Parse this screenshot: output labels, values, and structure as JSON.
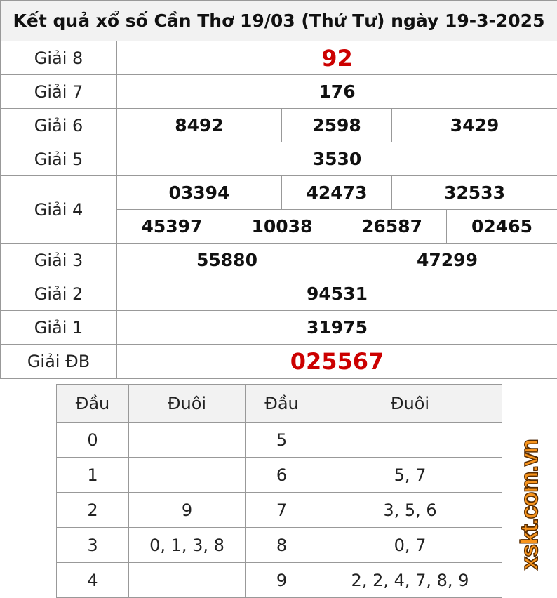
{
  "title": "Kết quả xổ số Cần Thơ 19/03 (Thứ Tư) ngày 19-3-2025",
  "prizes": {
    "g8": {
      "label": "Giải 8",
      "values": [
        "92"
      ]
    },
    "g7": {
      "label": "Giải 7",
      "values": [
        "176"
      ]
    },
    "g6": {
      "label": "Giải 6",
      "values": [
        "8492",
        "2598",
        "3429"
      ]
    },
    "g5": {
      "label": "Giải 5",
      "values": [
        "3530"
      ]
    },
    "g4": {
      "label": "Giải 4",
      "values": [
        "03394",
        "42473",
        "32533",
        "45397",
        "10038",
        "26587",
        "02465"
      ]
    },
    "g3": {
      "label": "Giải 3",
      "values": [
        "55880",
        "47299"
      ]
    },
    "g2": {
      "label": "Giải 2",
      "values": [
        "94531"
      ]
    },
    "g1": {
      "label": "Giải 1",
      "values": [
        "31975"
      ]
    },
    "db": {
      "label": "Giải ĐB",
      "values": [
        "025567"
      ]
    }
  },
  "loto": {
    "headers": [
      "Đầu",
      "Đuôi",
      "Đầu",
      "Đuôi"
    ],
    "rows": [
      {
        "d1": "0",
        "t1": "",
        "d2": "5",
        "t2": ""
      },
      {
        "d1": "1",
        "t1": "",
        "d2": "6",
        "t2": "5, 7"
      },
      {
        "d1": "2",
        "t1": "9",
        "d2": "7",
        "t2": "3, 5, 6"
      },
      {
        "d1": "3",
        "t1": "0, 1, 3, 8",
        "d2": "8",
        "t2": "0, 7"
      },
      {
        "d1": "4",
        "t1": "",
        "d2": "9",
        "t2": "2, 2, 4, 7, 8, 9"
      }
    ]
  },
  "watermark": "xskt.com.vn",
  "colors": {
    "highlight": "#cc0000",
    "watermark": "#f7941d"
  }
}
